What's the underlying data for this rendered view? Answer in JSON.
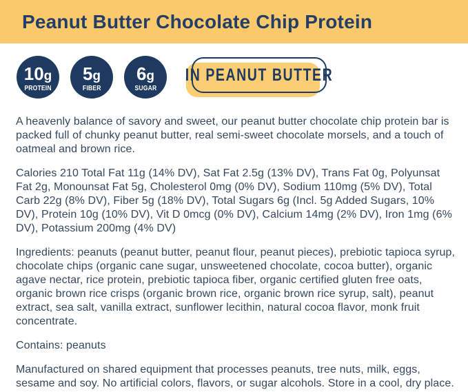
{
  "colors": {
    "header_background": "#FAC96C",
    "navy": "#1F3A60",
    "title_text": "#243E66",
    "body_text": "#35485E",
    "sticker_fill": "#FBCE74",
    "page_background": "#FFFFFF"
  },
  "header": {
    "title": "Peanut Butter Chocolate Chip Protein"
  },
  "badges": [
    {
      "amount": "10",
      "unit": "g",
      "label": "PROTEIN"
    },
    {
      "amount": "5",
      "unit": "g",
      "label": "FIBER"
    },
    {
      "amount": "6",
      "unit": "g",
      "label": "SUGAR"
    }
  ],
  "flavor_tag": "IN PEANUT BUTTER",
  "main": {
    "description": "A heavenly balance of savory and sweet, our peanut butter chocolate chip protein bar is packed full of chunky peanut butter, real semi-sweet chocolate morsels, and a touch of oatmeal and brown rice.",
    "nutrition": "Calories 210 Total Fat 11g (14% DV), Sat Fat 2.5g (13% DV), Trans Fat 0g, Polyunsat Fat 2g, Monounsat Fat 5g, Cholesterol 0mg (0% DV), Sodium 110mg (5% DV), Total Carb 22g (8% DV), Fiber 5g (18% DV), Total Sugars 6g (Incl. 5g Added Sugars, 10% DV), Protein 10g (10% DV), Vit D 0mcg (0% DV), Calcium 14mg (2% DV), Iron 1mg (6% DV), Potassium 200mg (4% DV)",
    "ingredients": "Ingredients: peanuts (peanut butter, peanut flour, peanut pieces), prebiotic tapioca syrup, chocolate chips (organic cane sugar, unsweetened chocolate, cocoa butter), organic agave nectar, rice protein, prebiotic tapioca fiber, organic certified gluten free oats, organic brown rice crisps (organic brown rice, organic brown rice syrup, salt), peanut extract, sea salt, vanilla extract, sunflower lecithin, natural cocoa flavor, monk fruit concentrate.",
    "contains": "Contains: peanuts",
    "allergen_note": "Manufactured on shared equipment that processes peanuts, tree nuts, milk, eggs, sesame and soy. No artificial colors, flavors, or sugar alcohols. Store in a cool, dry place."
  }
}
